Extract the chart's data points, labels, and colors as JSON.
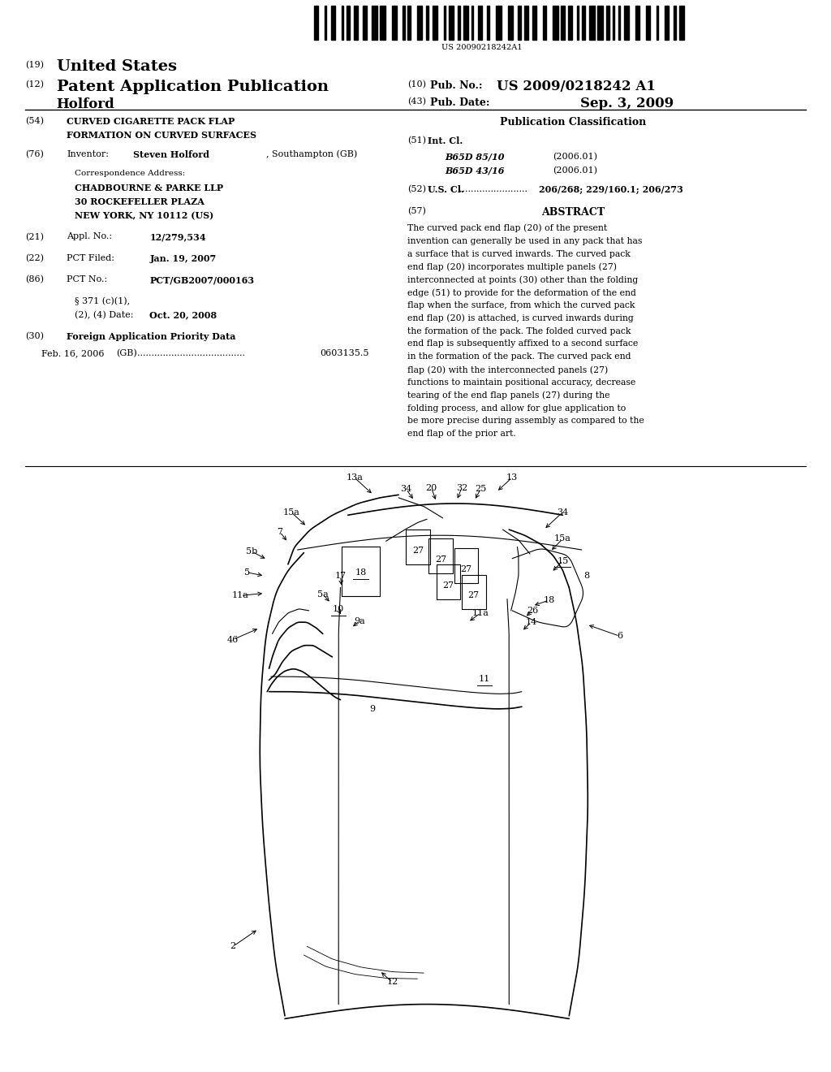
{
  "background_color": "#ffffff",
  "page_width": 10.24,
  "page_height": 13.2,
  "barcode_text": "US 20090218242A1",
  "header": {
    "country_num": "(19)",
    "country": "United States",
    "pub_num": "(12)",
    "pub_type": "Patent Application Publication",
    "pub_no_num": "(10)",
    "pub_no_label": "Pub. No.:",
    "pub_no_value": "US 2009/0218242 A1",
    "pub_date_num": "(43)",
    "pub_date_label": "Pub. Date:",
    "pub_date_value": "Sep. 3, 2009",
    "inventor_name": "Holford"
  },
  "left_col": {
    "title_num": "(54)",
    "title_line1": "CURVED CIGARETTE PACK FLAP",
    "title_line2": "FORMATION ON CURVED SURFACES",
    "inventor_num": "(76)",
    "inventor_label": "Inventor:",
    "inventor_bold": "Steven Holford",
    "inventor_rest": ", Southampton (GB)",
    "corr_label": "Correspondence Address:",
    "corr_line1": "CHADBOURNE & PARKE LLP",
    "corr_line2": "30 ROCKEFELLER PLAZA",
    "corr_line3": "NEW YORK, NY 10112 (US)",
    "appl_num": "(21)",
    "appl_label": "Appl. No.:",
    "appl_value": "12/279,534",
    "pct_filed_num": "(22)",
    "pct_filed_label": "PCT Filed:",
    "pct_filed_value": "Jan. 19, 2007",
    "pct_no_num": "(86)",
    "pct_no_label": "PCT No.:",
    "pct_no_value": "PCT/GB2007/000163",
    "section_label": "§ 371 (c)(1),",
    "section_date_label": "(2), (4) Date:",
    "section_date_value": "Oct. 20, 2008",
    "foreign_num": "(30)",
    "foreign_label": "Foreign Application Priority Data",
    "foreign_date": "Feb. 16, 2006",
    "foreign_country": "(GB)",
    "foreign_dots": "......................................",
    "foreign_value": "0603135.5"
  },
  "right_col": {
    "pub_class_title": "Publication Classification",
    "int_cl_num": "(51)",
    "int_cl_label": "Int. Cl.",
    "int_cl_line1_code": "B65D 85/10",
    "int_cl_line1_year": "(2006.01)",
    "int_cl_line2_code": "B65D 43/16",
    "int_cl_line2_year": "(2006.01)",
    "us_cl_num": "(52)",
    "us_cl_label": "U.S. Cl.",
    "us_cl_dots": "........................",
    "us_cl_value": "206/268; 229/160.1; 206/273",
    "abstract_num": "(57)",
    "abstract_title": "ABSTRACT",
    "abstract_text": "The curved pack end flap (20) of the present invention can generally be used in any pack that has a surface that is curved inwards. The curved pack end flap (20) incorporates multiple panels (27) interconnected at points (30) other than the folding edge (51) to provide for the deformation of the end flap when the surface, from which the curved pack end flap (20) is attached, is curved inwards during the formation of the pack. The folded curved pack end flap is subsequently affixed to a second surface in the formation of the pack. The curved pack end flap (20) with the interconnected panels (27) functions to maintain positional accuracy, decrease tearing of the end flap panels (27) during the folding process, and allow for glue application to be more precise during assembly as compared to the end flap of the prior art."
  }
}
